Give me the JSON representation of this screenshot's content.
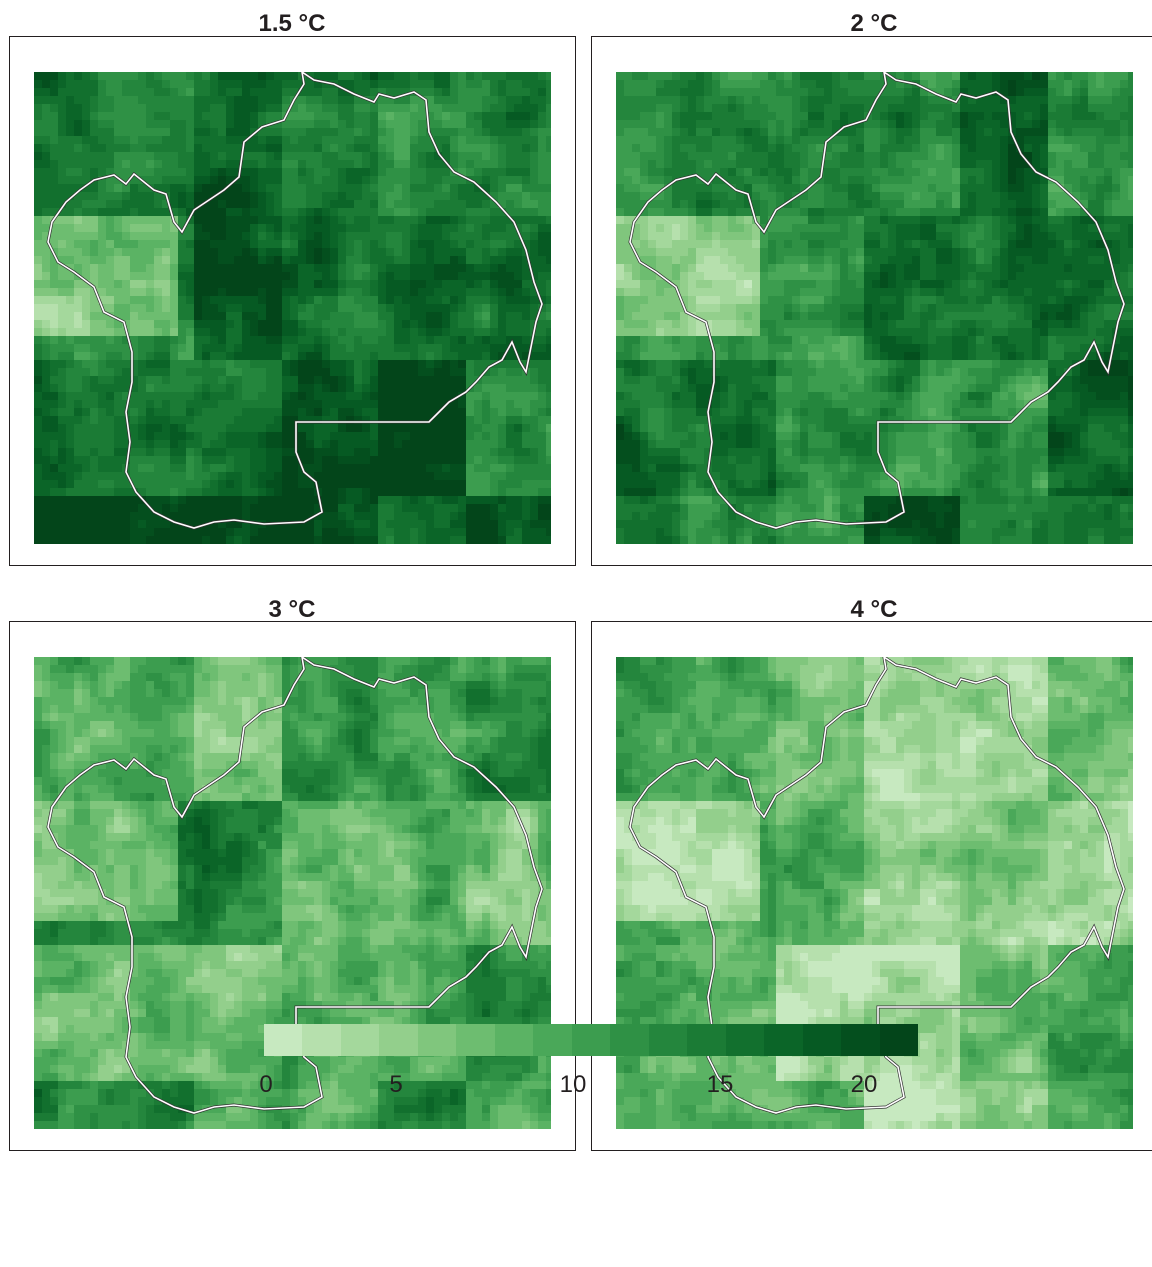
{
  "panels": [
    {
      "title": "1.5 °C",
      "warming_level": 1.5
    },
    {
      "title": "2 °C",
      "warming_level": 2
    },
    {
      "title": "3 °C",
      "warming_level": 3
    },
    {
      "title": "4 °C",
      "warming_level": 4
    }
  ],
  "legend": {
    "min": 0,
    "max": 22,
    "ticks": [
      "0",
      "5",
      "10",
      "15",
      "20"
    ],
    "tick_values": [
      0,
      5,
      10,
      15,
      20
    ],
    "colors": [
      "#c7e9c0",
      "#b6e0ad",
      "#a4d89c",
      "#93cf8c",
      "#80c67d",
      "#6dbd70",
      "#5bb364",
      "#4aa859",
      "#3c9d4f",
      "#2f9145",
      "#24863d",
      "#1b7b35",
      "#12702e",
      "#0b6528",
      "#065a23",
      "#044f1e",
      "#03451a"
    ]
  },
  "map_colors": {
    "low": "#c7e9c0",
    "high": "#00441b",
    "boundary": "#ffffff"
  }
}
